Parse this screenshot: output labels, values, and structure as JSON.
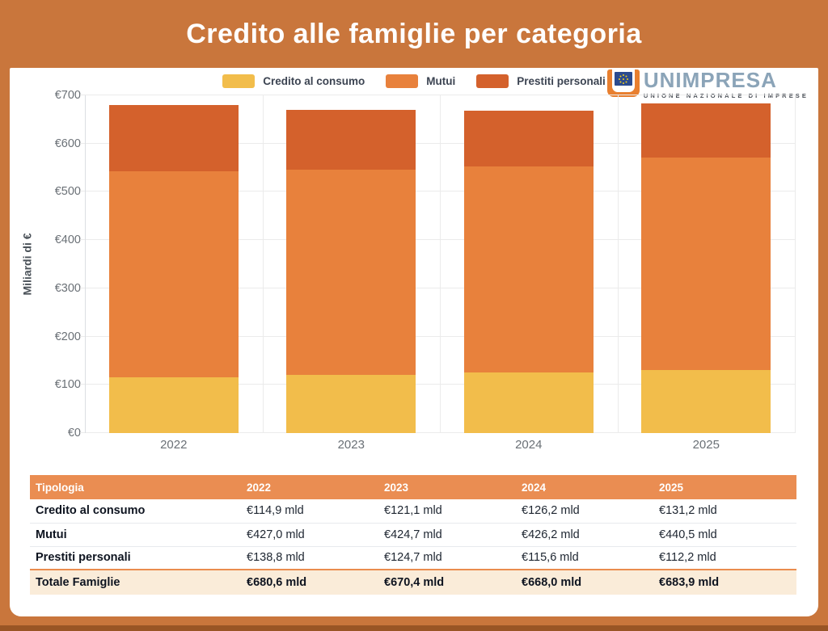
{
  "page": {
    "title": "Credito alle famiglie per categoria"
  },
  "logo": {
    "name": "UNIMPRESA",
    "subtitle": "UNIONE NAZIONALE DI IMPRESE",
    "eu_flag": "eu-stars-emblem"
  },
  "colors": {
    "frame_orange": "#c9763c",
    "table_header_orange": "#ea8d52",
    "total_row_bg": "#faecd9",
    "series_yellow": "#f2bd4b",
    "series_orange": "#e8813c",
    "series_dark_orange": "#d4612c"
  },
  "chart_data": {
    "type": "bar",
    "stacked": true,
    "categories": [
      "2022",
      "2023",
      "2024",
      "2025"
    ],
    "series": [
      {
        "name": "Credito al consumo",
        "color": "#f2bd4b",
        "values": [
          114.9,
          121.1,
          126.2,
          131.2
        ]
      },
      {
        "name": "Mutui",
        "color": "#e8813c",
        "values": [
          427.0,
          424.7,
          426.2,
          440.5
        ]
      },
      {
        "name": "Prestiti personali",
        "color": "#d4612c",
        "values": [
          138.8,
          124.7,
          115.6,
          112.2
        ]
      }
    ],
    "totals": [
      680.6,
      670.4,
      668.0,
      683.9
    ],
    "title": "Credito alle famiglie per categoria",
    "xlabel": "",
    "ylabel": "Miliardi di €",
    "ylim": [
      0,
      700
    ],
    "ytick_step": 100,
    "ytick_prefix": "€",
    "grid": true,
    "legend_position": "top-center"
  },
  "table": {
    "headers": [
      "Tipologia",
      "2022",
      "2023",
      "2024",
      "2025"
    ],
    "rows": [
      {
        "label": "Credito al consumo",
        "values": [
          "€114,9 mld",
          "€121,1 mld",
          "€126,2 mld",
          "€131,2 mld"
        ]
      },
      {
        "label": "Mutui",
        "values": [
          "€427,0 mld",
          "€424,7 mld",
          "€426,2 mld",
          "€440,5 mld"
        ]
      },
      {
        "label": "Prestiti personali",
        "values": [
          "€138,8 mld",
          "€124,7 mld",
          "€115,6 mld",
          "€112,2 mld"
        ]
      }
    ],
    "total_row": {
      "label": "Totale Famiglie",
      "values": [
        "€680,6 mld",
        "€670,4 mld",
        "€668,0 mld",
        "€683,9 mld"
      ]
    }
  }
}
